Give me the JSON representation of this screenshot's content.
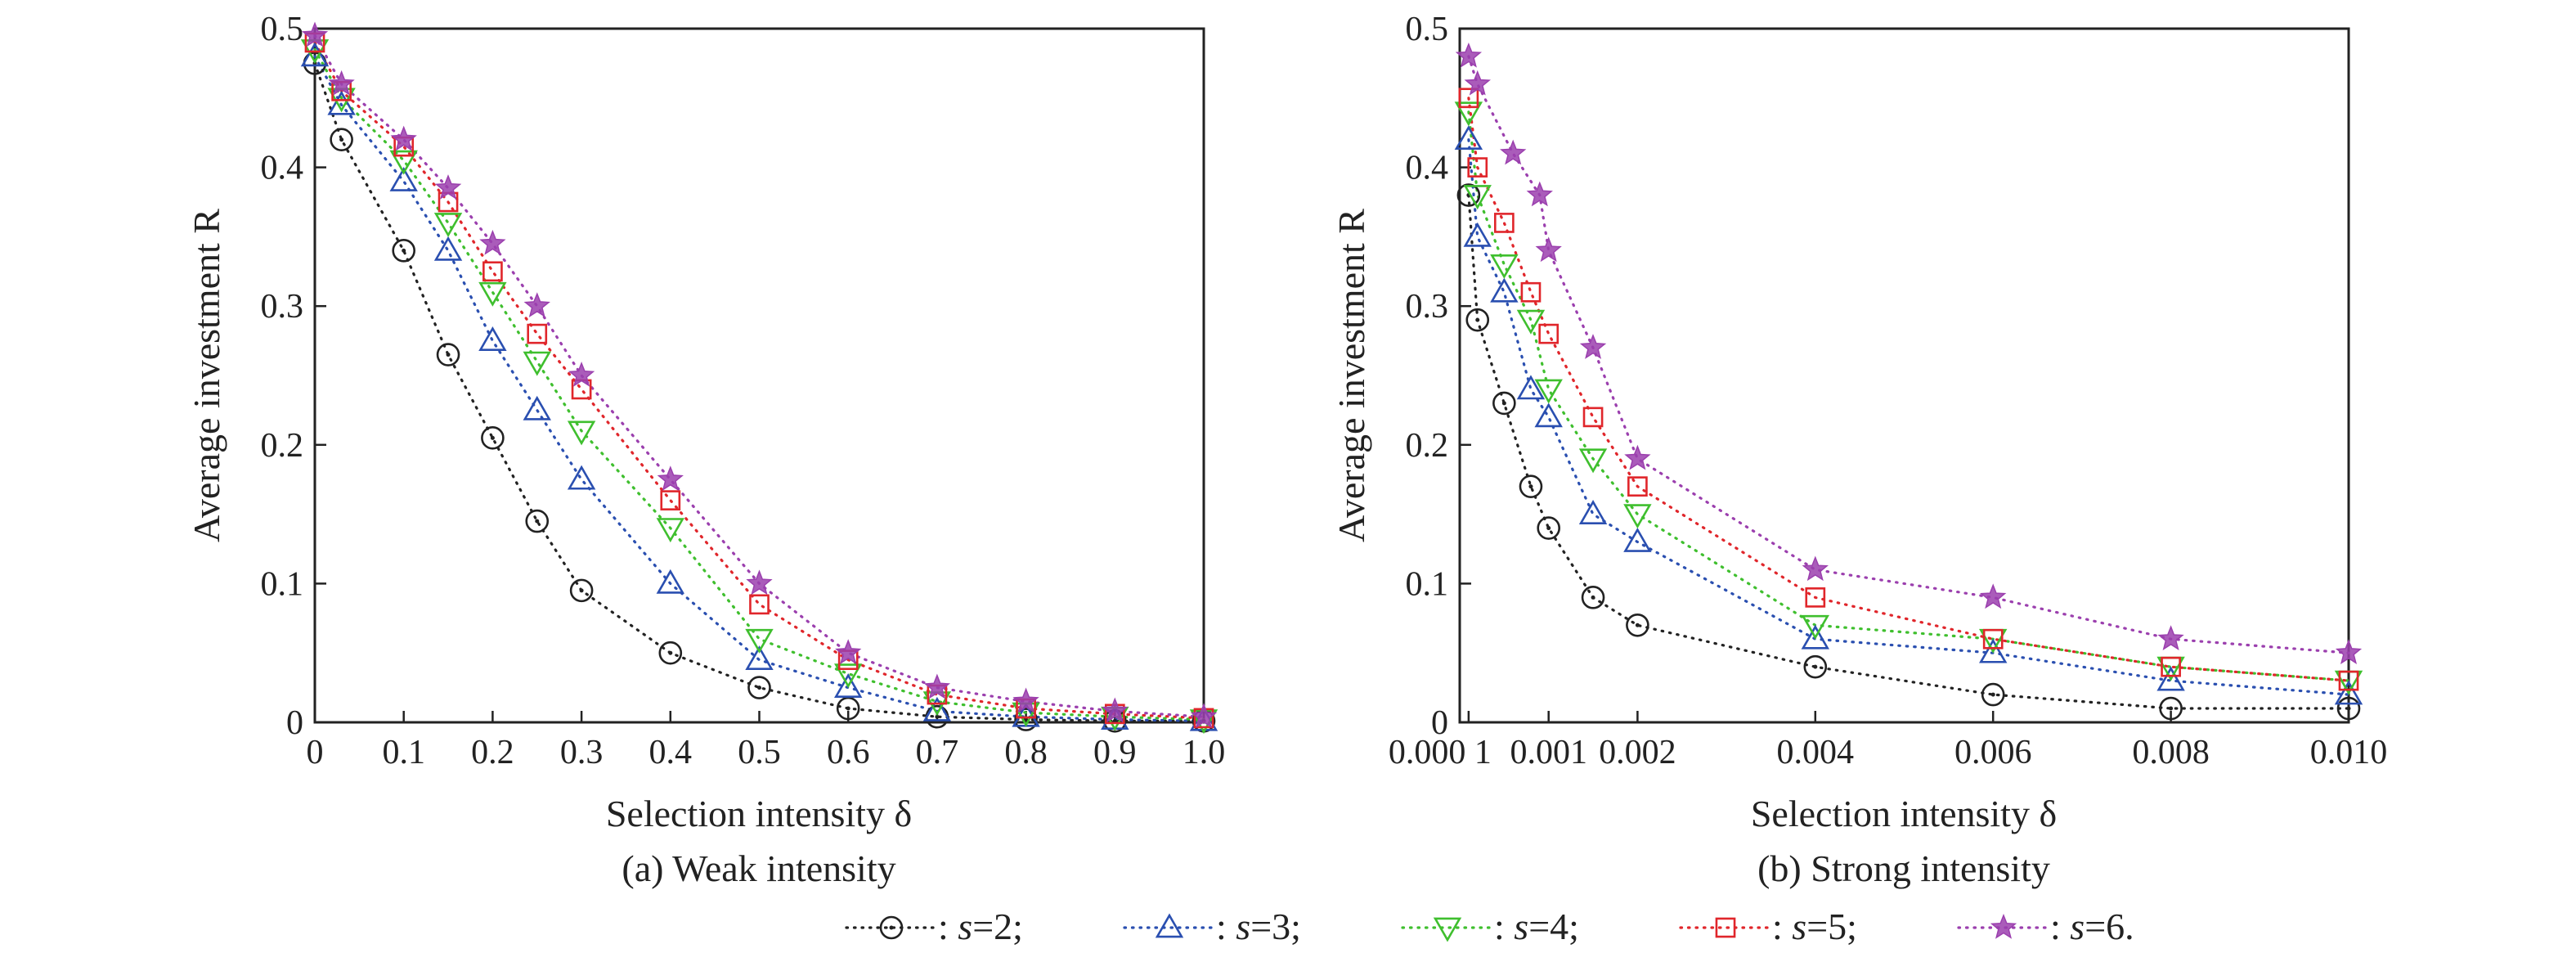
{
  "chart_data": [
    {
      "type": "line",
      "caption": "(a) Weak intensity",
      "xlabel": "Selection intensity δ",
      "ylabel": "Average investment R",
      "xlim": [
        0,
        1.0
      ],
      "ylim": [
        0,
        0.5
      ],
      "xticks": [
        "0",
        "0.1",
        "0.2",
        "0.3",
        "0.4",
        "0.5",
        "0.6",
        "0.7",
        "0.8",
        "0.9",
        "1.0"
      ],
      "yticks": [
        "0",
        "0.1",
        "0.2",
        "0.3",
        "0.4",
        "0.5"
      ],
      "grid": false,
      "x": [
        0,
        0.03,
        0.1,
        0.15,
        0.2,
        0.25,
        0.3,
        0.4,
        0.5,
        0.6,
        0.7,
        0.8,
        0.9,
        1.0
      ],
      "series": [
        {
          "name": "s=2",
          "values": [
            0.475,
            0.42,
            0.34,
            0.265,
            0.205,
            0.145,
            0.095,
            0.05,
            0.025,
            0.01,
            0.004,
            0.002,
            0.001,
            0.001
          ]
        },
        {
          "name": "s=3",
          "values": [
            0.48,
            0.445,
            0.39,
            0.34,
            0.275,
            0.225,
            0.175,
            0.1,
            0.045,
            0.025,
            0.008,
            0.004,
            0.002,
            0.001
          ]
        },
        {
          "name": "s=4",
          "values": [
            0.485,
            0.45,
            0.405,
            0.36,
            0.31,
            0.26,
            0.21,
            0.14,
            0.06,
            0.035,
            0.015,
            0.007,
            0.004,
            0.002
          ]
        },
        {
          "name": "s=5",
          "values": [
            0.49,
            0.455,
            0.415,
            0.375,
            0.325,
            0.28,
            0.24,
            0.16,
            0.085,
            0.045,
            0.02,
            0.01,
            0.006,
            0.003
          ]
        },
        {
          "name": "s=6",
          "values": [
            0.495,
            0.46,
            0.42,
            0.385,
            0.345,
            0.3,
            0.25,
            0.175,
            0.1,
            0.05,
            0.025,
            0.015,
            0.008,
            0.004
          ]
        }
      ]
    },
    {
      "type": "line",
      "caption": "(b) Strong intensity",
      "xlabel": "Selection intensity δ",
      "ylabel": "Average investment R",
      "xlim": [
        0,
        0.01
      ],
      "ylim": [
        0,
        0.5
      ],
      "xticks": [
        "0.000 1",
        "0.001",
        "0.002",
        "0.004",
        "0.006",
        "0.008",
        "0.010"
      ],
      "xtick_values": [
        0.0001,
        0.001,
        0.002,
        0.004,
        0.006,
        0.008,
        0.01
      ],
      "yticks": [
        "0",
        "0.1",
        "0.2",
        "0.3",
        "0.4",
        "0.5"
      ],
      "grid": false,
      "series": [
        {
          "name": "s=2",
          "x": [
            0.0001,
            0.0002,
            0.0005,
            0.0008,
            0.001,
            0.0015,
            0.002,
            0.004,
            0.006,
            0.008,
            0.01
          ],
          "values": [
            0.38,
            0.29,
            0.23,
            0.17,
            0.14,
            0.09,
            0.07,
            0.04,
            0.02,
            0.01,
            0.01
          ]
        },
        {
          "name": "s=3",
          "x": [
            0.0001,
            0.0002,
            0.0005,
            0.0008,
            0.001,
            0.0015,
            0.002,
            0.004,
            0.006,
            0.008,
            0.01
          ],
          "values": [
            0.42,
            0.35,
            0.31,
            0.24,
            0.22,
            0.15,
            0.13,
            0.06,
            0.05,
            0.03,
            0.02
          ]
        },
        {
          "name": "s=4",
          "x": [
            0.0001,
            0.0002,
            0.0005,
            0.0008,
            0.001,
            0.0015,
            0.002,
            0.004,
            0.006,
            0.008,
            0.01
          ],
          "values": [
            0.44,
            0.38,
            0.33,
            0.29,
            0.24,
            0.19,
            0.15,
            0.07,
            0.06,
            0.04,
            0.03
          ]
        },
        {
          "name": "s=5",
          "x": [
            0.0001,
            0.0002,
            0.0005,
            0.0008,
            0.001,
            0.0015,
            0.002,
            0.004,
            0.006,
            0.008,
            0.01
          ],
          "values": [
            0.45,
            0.4,
            0.36,
            0.31,
            0.28,
            0.22,
            0.17,
            0.09,
            0.06,
            0.04,
            0.03
          ]
        },
        {
          "name": "s=6",
          "x": [
            0.0001,
            0.0002,
            0.0006,
            0.0009,
            0.001,
            0.0015,
            0.002,
            0.004,
            0.006,
            0.008,
            0.01
          ],
          "values": [
            0.48,
            0.46,
            0.41,
            0.38,
            0.34,
            0.27,
            0.19,
            0.11,
            0.09,
            0.06,
            0.05
          ]
        }
      ]
    }
  ],
  "legend": {
    "entries": [
      {
        "prefix": ": ",
        "italic": "s",
        "label": "=2;",
        "color": "#222222",
        "marker": "circle-dot"
      },
      {
        "prefix": ": ",
        "italic": "s",
        "label": "=3;",
        "color": "#2a4fb0",
        "marker": "triangle-up"
      },
      {
        "prefix": ": ",
        "italic": "s",
        "label": "=4;",
        "color": "#3fbf2e",
        "marker": "triangle-down"
      },
      {
        "prefix": ": ",
        "italic": "s",
        "label": "=5;",
        "color": "#e0262b",
        "marker": "square"
      },
      {
        "prefix": ": ",
        "italic": "s",
        "label": "=6.",
        "color": "#9b3fae",
        "marker": "star"
      }
    ]
  }
}
